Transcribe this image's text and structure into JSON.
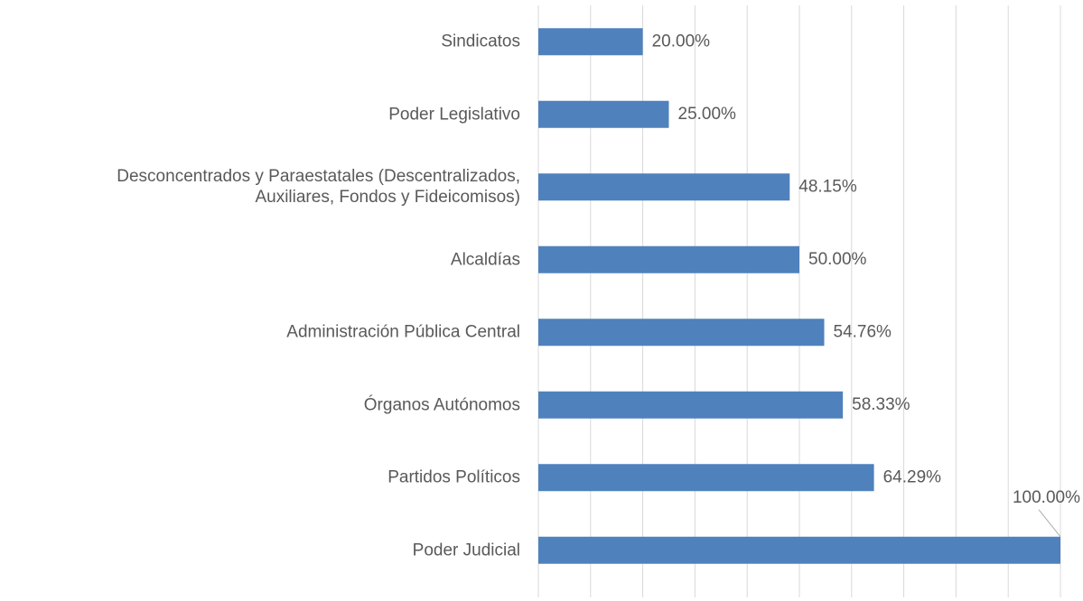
{
  "chart_data": {
    "type": "bar",
    "orientation": "horizontal",
    "categories": [
      "Sindicatos",
      "Poder Legislativo",
      "Desconcentrados y Paraestatales (Descentralizados,\nAuxiliares, Fondos y Fideicomisos)",
      "Alcaldías",
      "Administración Pública Central",
      "Órganos Autónomos",
      "Partidos Políticos",
      "Poder Judicial"
    ],
    "values": [
      20,
      25,
      48.15,
      50,
      54.76,
      58.33,
      64.29,
      100
    ],
    "value_labels": [
      "20.00%",
      "25.00%",
      "48.15%",
      "50.00%",
      "54.76%",
      "58.33%",
      "64.29%",
      "100.00%"
    ],
    "color": "#4f81bd",
    "xlim": [
      0,
      100
    ],
    "xticks": [
      0,
      10,
      20,
      30,
      40,
      50,
      60,
      70,
      80,
      90,
      100
    ],
    "grid": true
  }
}
